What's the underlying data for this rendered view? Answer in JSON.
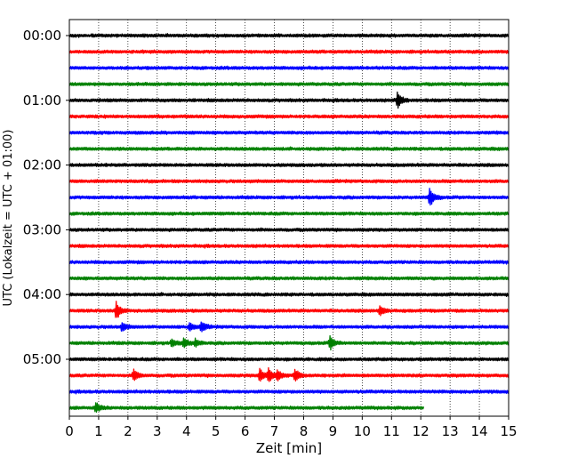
{
  "chart_data": {
    "type": "line",
    "title": "",
    "xlabel": "Zeit  [min]",
    "ylabel": "UTC (Lokalzeit = UTC + 01:00)",
    "xlim": [
      0,
      15
    ],
    "x_ticks": [
      "0",
      "1",
      "2",
      "3",
      "4",
      "5",
      "6",
      "7",
      "8",
      "9",
      "10",
      "11",
      "12",
      "13",
      "14",
      "15"
    ],
    "y_tick_labels": [
      "00:00",
      "01:00",
      "02:00",
      "03:00",
      "04:00",
      "05:00"
    ],
    "y_tick_traces": [
      0,
      4,
      8,
      12,
      16,
      20
    ],
    "trace_interval_minutes": 15,
    "grid": "vertical dotted lines at each minute",
    "color_cycle": [
      "#000000",
      "#ff0000",
      "#0000ff",
      "#008000"
    ],
    "series": [
      {
        "start": "00:00",
        "color": "#000000",
        "end_min": 15,
        "events": []
      },
      {
        "start": "00:15",
        "color": "#ff0000",
        "end_min": 15,
        "events": []
      },
      {
        "start": "00:30",
        "color": "#0000ff",
        "end_min": 15,
        "events": []
      },
      {
        "start": "00:45",
        "color": "#008000",
        "end_min": 15,
        "events": []
      },
      {
        "start": "01:00",
        "color": "#000000",
        "end_min": 15,
        "events": [
          {
            "t": 11.2,
            "amp": 1.0
          }
        ]
      },
      {
        "start": "01:15",
        "color": "#ff0000",
        "end_min": 15,
        "events": []
      },
      {
        "start": "01:30",
        "color": "#0000ff",
        "end_min": 15,
        "events": []
      },
      {
        "start": "01:45",
        "color": "#008000",
        "end_min": 15,
        "events": []
      },
      {
        "start": "02:00",
        "color": "#000000",
        "end_min": 15,
        "events": []
      },
      {
        "start": "02:15",
        "color": "#ff0000",
        "end_min": 15,
        "events": []
      },
      {
        "start": "02:30",
        "color": "#0000ff",
        "end_min": 15,
        "events": [
          {
            "t": 12.3,
            "amp": 1.1
          }
        ]
      },
      {
        "start": "02:45",
        "color": "#008000",
        "end_min": 15,
        "events": []
      },
      {
        "start": "03:00",
        "color": "#000000",
        "end_min": 15,
        "events": []
      },
      {
        "start": "03:15",
        "color": "#ff0000",
        "end_min": 15,
        "events": []
      },
      {
        "start": "03:30",
        "color": "#0000ff",
        "end_min": 15,
        "events": []
      },
      {
        "start": "03:45",
        "color": "#008000",
        "end_min": 15,
        "events": []
      },
      {
        "start": "04:00",
        "color": "#000000",
        "end_min": 15,
        "events": []
      },
      {
        "start": "04:15",
        "color": "#ff0000",
        "end_min": 15,
        "events": [
          {
            "t": 1.6,
            "amp": 1.0
          },
          {
            "t": 10.6,
            "amp": 0.6
          }
        ]
      },
      {
        "start": "04:30",
        "color": "#0000ff",
        "end_min": 15,
        "events": [
          {
            "t": 1.8,
            "amp": 0.5
          },
          {
            "t": 4.1,
            "amp": 0.5
          },
          {
            "t": 4.5,
            "amp": 0.6
          }
        ]
      },
      {
        "start": "04:45",
        "color": "#008000",
        "end_min": 15,
        "events": [
          {
            "t": 3.5,
            "amp": 0.45
          },
          {
            "t": 3.9,
            "amp": 0.55
          },
          {
            "t": 4.3,
            "amp": 0.4
          },
          {
            "t": 8.9,
            "amp": 0.75
          }
        ]
      },
      {
        "start": "05:00",
        "color": "#000000",
        "end_min": 15,
        "events": []
      },
      {
        "start": "05:15",
        "color": "#ff0000",
        "end_min": 15,
        "events": [
          {
            "t": 2.2,
            "amp": 0.75
          },
          {
            "t": 6.5,
            "amp": 0.8
          },
          {
            "t": 6.8,
            "amp": 0.85
          },
          {
            "t": 7.1,
            "amp": 0.6
          },
          {
            "t": 7.7,
            "amp": 0.8
          }
        ]
      },
      {
        "start": "05:30",
        "color": "#0000ff",
        "end_min": 15,
        "events": []
      },
      {
        "start": "05:45",
        "color": "#008000",
        "end_min": 12.1,
        "events": [
          {
            "t": 0.9,
            "amp": 0.6
          }
        ]
      }
    ]
  }
}
